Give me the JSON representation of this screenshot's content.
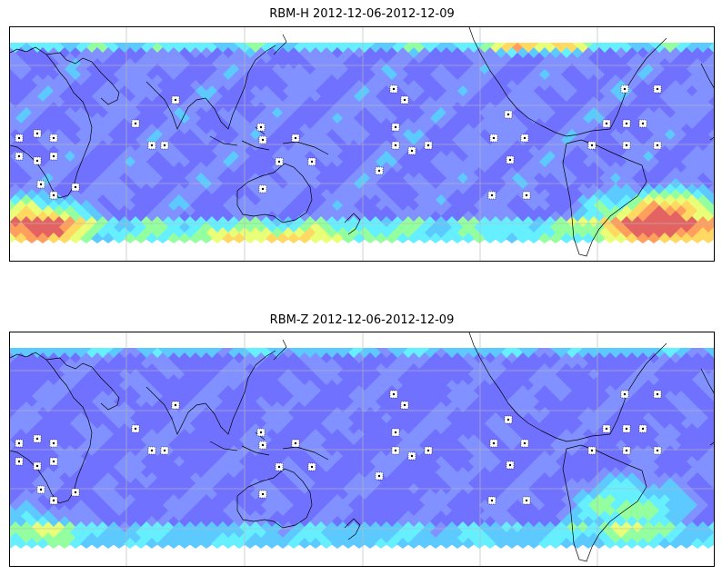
{
  "panels": [
    {
      "id": "rbm-h",
      "title": "RBM-H 2012-12-06-2012-12-09",
      "colors": [
        "#6a6aff",
        "#7b8cff",
        "#55c8ff",
        "#5ef0ff",
        "#8fff9a",
        "#e8ff70",
        "#ffd85a",
        "#ff9a55",
        "#e25a5a"
      ]
    },
    {
      "id": "rbm-z",
      "title": "RBM-Z 2012-12-06-2012-12-09",
      "colors": [
        "#6a6aff",
        "#7b8cff",
        "#55c8ff",
        "#5ef0ff",
        "#8fff9a",
        "#e8ff70",
        "#ffd85a"
      ]
    }
  ],
  "map": {
    "gridlines": true,
    "coastline_color": "#000000",
    "station_marker": "white-dotted-square"
  }
}
